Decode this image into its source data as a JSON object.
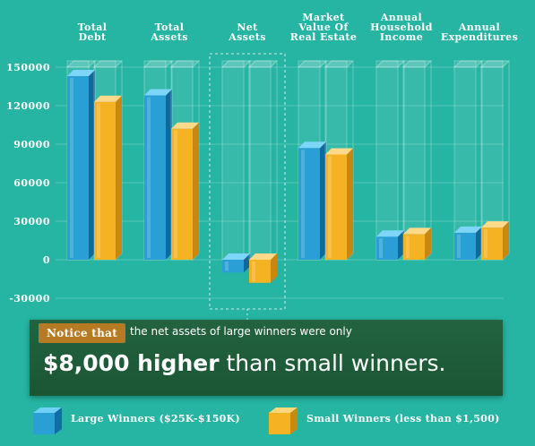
{
  "chart_data": {
    "type": "bar",
    "categories": [
      "Total Debt",
      "Total Assets",
      "Net Assets",
      "Market Value Of Real Estate",
      "Annual Household Income",
      "Annual Expenditures"
    ],
    "category_label_lines": [
      [
        "Total",
        "Debt"
      ],
      [
        "Total",
        "Assets"
      ],
      [
        "Net",
        "Assets"
      ],
      [
        "Market",
        "Value Of",
        "Real Estate"
      ],
      [
        "Annual",
        "Household",
        "Income"
      ],
      [
        "Annual",
        "Expenditures"
      ]
    ],
    "series": [
      {
        "name": "Large Winners ($25K-$150K)",
        "values": [
          143000,
          128000,
          -10000,
          87000,
          18000,
          21000
        ]
      },
      {
        "name": "Small Winners (less than $1,500)",
        "values": [
          123000,
          102000,
          -18000,
          82000,
          20000,
          25000
        ]
      }
    ],
    "yticks": [
      150000,
      120000,
      90000,
      60000,
      30000,
      0,
      -30000
    ],
    "ylim": [
      -30000,
      150000
    ],
    "highlighted_category": "Net Assets",
    "grid": true,
    "legend_position": "bottom"
  },
  "colors": {
    "background": "#26b5a3",
    "large_winners": "#2a9fd6",
    "small_winners": "#f5b324",
    "callout_bg": "#1e5a37",
    "callout_tag": "#b57a22"
  },
  "callout": {
    "tag": "Notice that",
    "text": "the net assets of large winners were only",
    "big_bold": "$8,000 higher",
    "big_rest": "than small winners."
  },
  "legend": {
    "large_label": "Large Winners ($25K-$150K)",
    "small_label": "Small Winners (less than $1,500)",
    "large_icon": "blue-cube-icon",
    "small_icon": "yellow-cube-icon"
  }
}
